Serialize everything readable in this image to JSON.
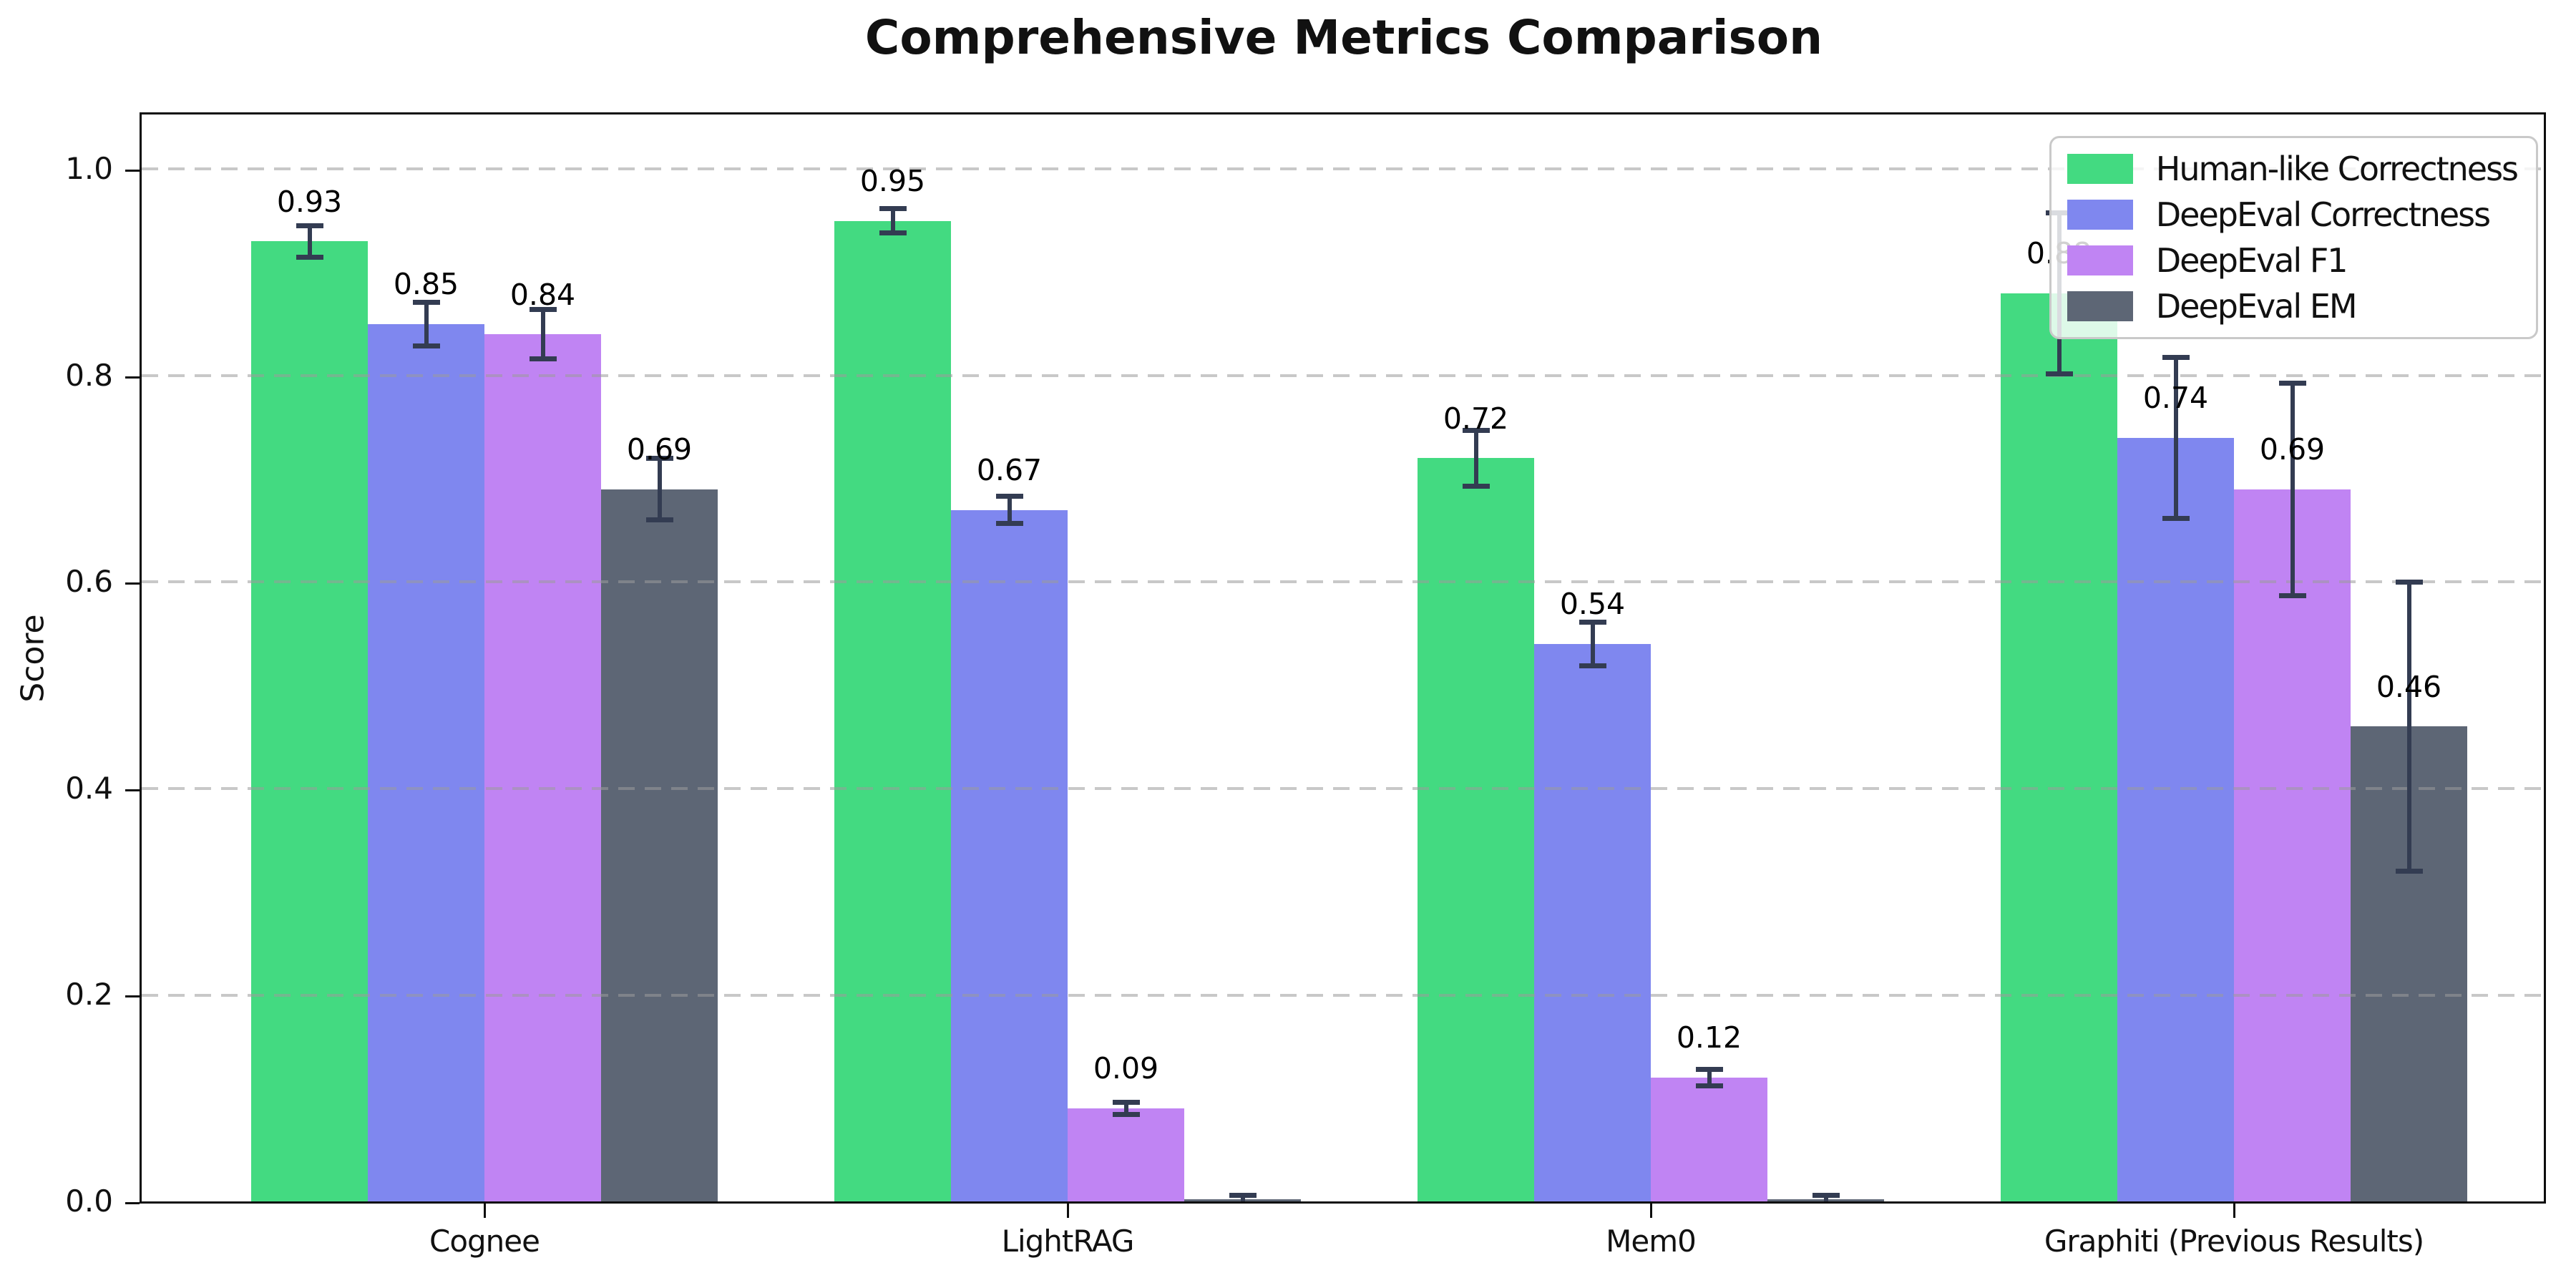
{
  "title": "Comprehensive Metrics Comparison",
  "ylabel": "Score",
  "chart_data": {
    "type": "bar",
    "title": "Comprehensive Metrics Comparison",
    "xlabel": "",
    "ylabel": "Score",
    "categories": [
      "Cognee",
      "LightRAG",
      "Mem0",
      "Graphiti (Previous Results)"
    ],
    "series": [
      {
        "name": "Human-like Correctness",
        "color": "#43da81",
        "values": [
          0.93,
          0.95,
          0.72,
          0.88
        ],
        "errors": [
          0.015,
          0.012,
          0.027,
          0.078
        ],
        "labels": [
          "0.93",
          "0.95",
          "0.72",
          "0.88"
        ]
      },
      {
        "name": "DeepEval Correctness",
        "color": "#7f87ef",
        "values": [
          0.85,
          0.67,
          0.54,
          0.74
        ],
        "errors": [
          0.021,
          0.013,
          0.021,
          0.078
        ],
        "labels": [
          "0.85",
          "0.67",
          "0.54",
          "0.74"
        ]
      },
      {
        "name": "DeepEval F1",
        "color": "#c084f3",
        "values": [
          0.84,
          0.09,
          0.12,
          0.69
        ],
        "errors": [
          0.024,
          0.006,
          0.008,
          0.103
        ],
        "labels": [
          "0.84",
          "0.09",
          "0.12",
          "0.69"
        ]
      },
      {
        "name": "DeepEval EM",
        "color": "#5d6675",
        "values": [
          0.69,
          0.002,
          0.002,
          0.46
        ],
        "errors": [
          0.03,
          0.004,
          0.004,
          0.14
        ],
        "labels": [
          "0.69",
          "",
          "",
          "0.46"
        ]
      }
    ],
    "ylim": [
      0,
      1.053
    ],
    "ytick_values": [
      0.0,
      0.2,
      0.4,
      0.6,
      0.8,
      1.0
    ],
    "ytick_labels": [
      "0.0",
      "0.2",
      "0.4",
      "0.6",
      "0.8",
      "1.0"
    ],
    "grid": "horizontal-dashed",
    "legend_position": "upper-right",
    "error_bar_color": "#333c52"
  }
}
